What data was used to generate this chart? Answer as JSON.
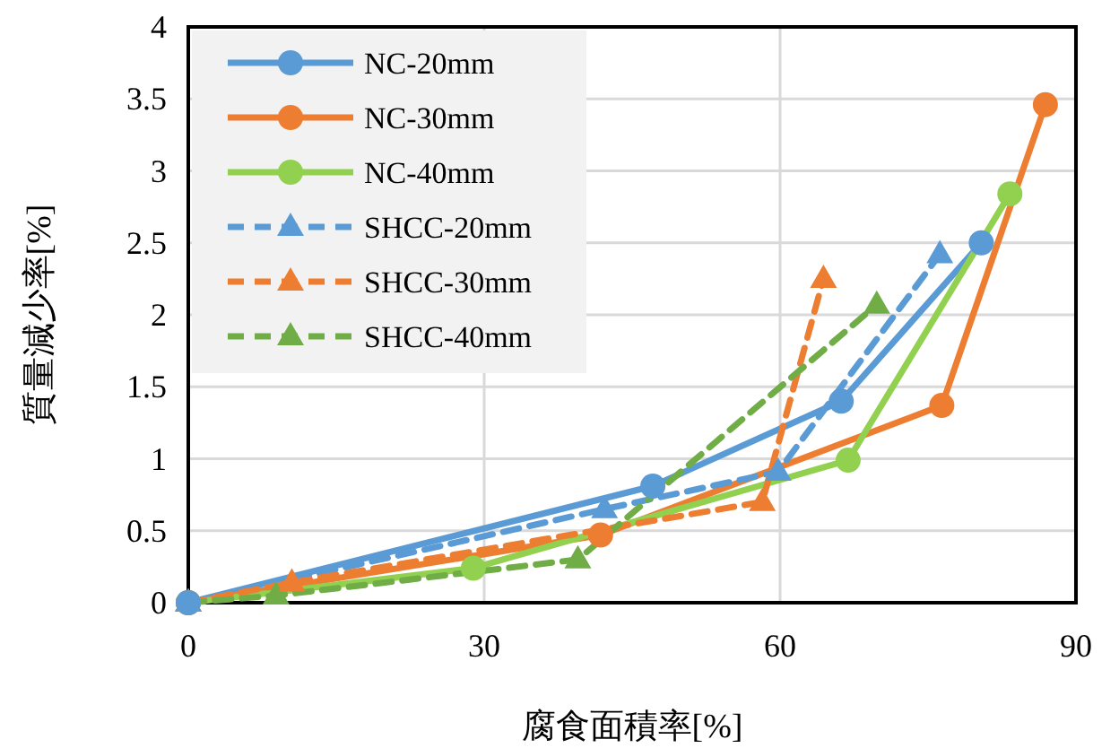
{
  "chart_data": {
    "type": "line",
    "xlabel": "腐食面積率[%]",
    "ylabel": "質量減少率[%]",
    "xlim": [
      0,
      90
    ],
    "xticks": [
      0,
      30,
      60,
      90
    ],
    "ylim": [
      0,
      4
    ],
    "yticks": [
      0,
      0.5,
      1,
      1.5,
      2,
      2.5,
      3,
      3.5,
      4
    ],
    "grid": true,
    "legend": "top left",
    "series": [
      {
        "name": "NC-20mm",
        "color": "#5b9bd5",
        "marker": "circle",
        "line_style": "solid",
        "x": [
          0,
          47.1,
          66.2,
          80.4
        ],
        "values": [
          0,
          0.81,
          1.4,
          2.5
        ]
      },
      {
        "name": "NC-30mm",
        "color": "#ed7d31",
        "marker": "circle",
        "line_style": "solid",
        "x": [
          0,
          41.8,
          76.4,
          86.9
        ],
        "values": [
          0,
          0.47,
          1.37,
          3.46
        ]
      },
      {
        "name": "NC-40mm",
        "color": "#92d050",
        "marker": "circle",
        "line_style": "solid",
        "x": [
          0,
          28.9,
          66.9,
          83.3
        ],
        "values": [
          0,
          0.24,
          0.99,
          2.84
        ]
      },
      {
        "name": "SHCC-20mm",
        "color": "#5b9bd5",
        "marker": "triangle",
        "line_style": "dashed",
        "x": [
          0,
          42.2,
          59.8,
          76.2
        ],
        "values": [
          0,
          0.65,
          0.91,
          2.42
        ]
      },
      {
        "name": "SHCC-30mm",
        "color": "#ed7d31",
        "marker": "triangle",
        "line_style": "dashed",
        "x": [
          0,
          10.5,
          58.2,
          64.4
        ],
        "values": [
          0,
          0.14,
          0.7,
          2.25
        ]
      },
      {
        "name": "SHCC-40mm",
        "color": "#70ad47",
        "marker": "triangle",
        "line_style": "dashed",
        "x": [
          0,
          8.9,
          39.5,
          69.8
        ],
        "values": [
          0,
          0.05,
          0.3,
          2.07
        ]
      }
    ]
  }
}
